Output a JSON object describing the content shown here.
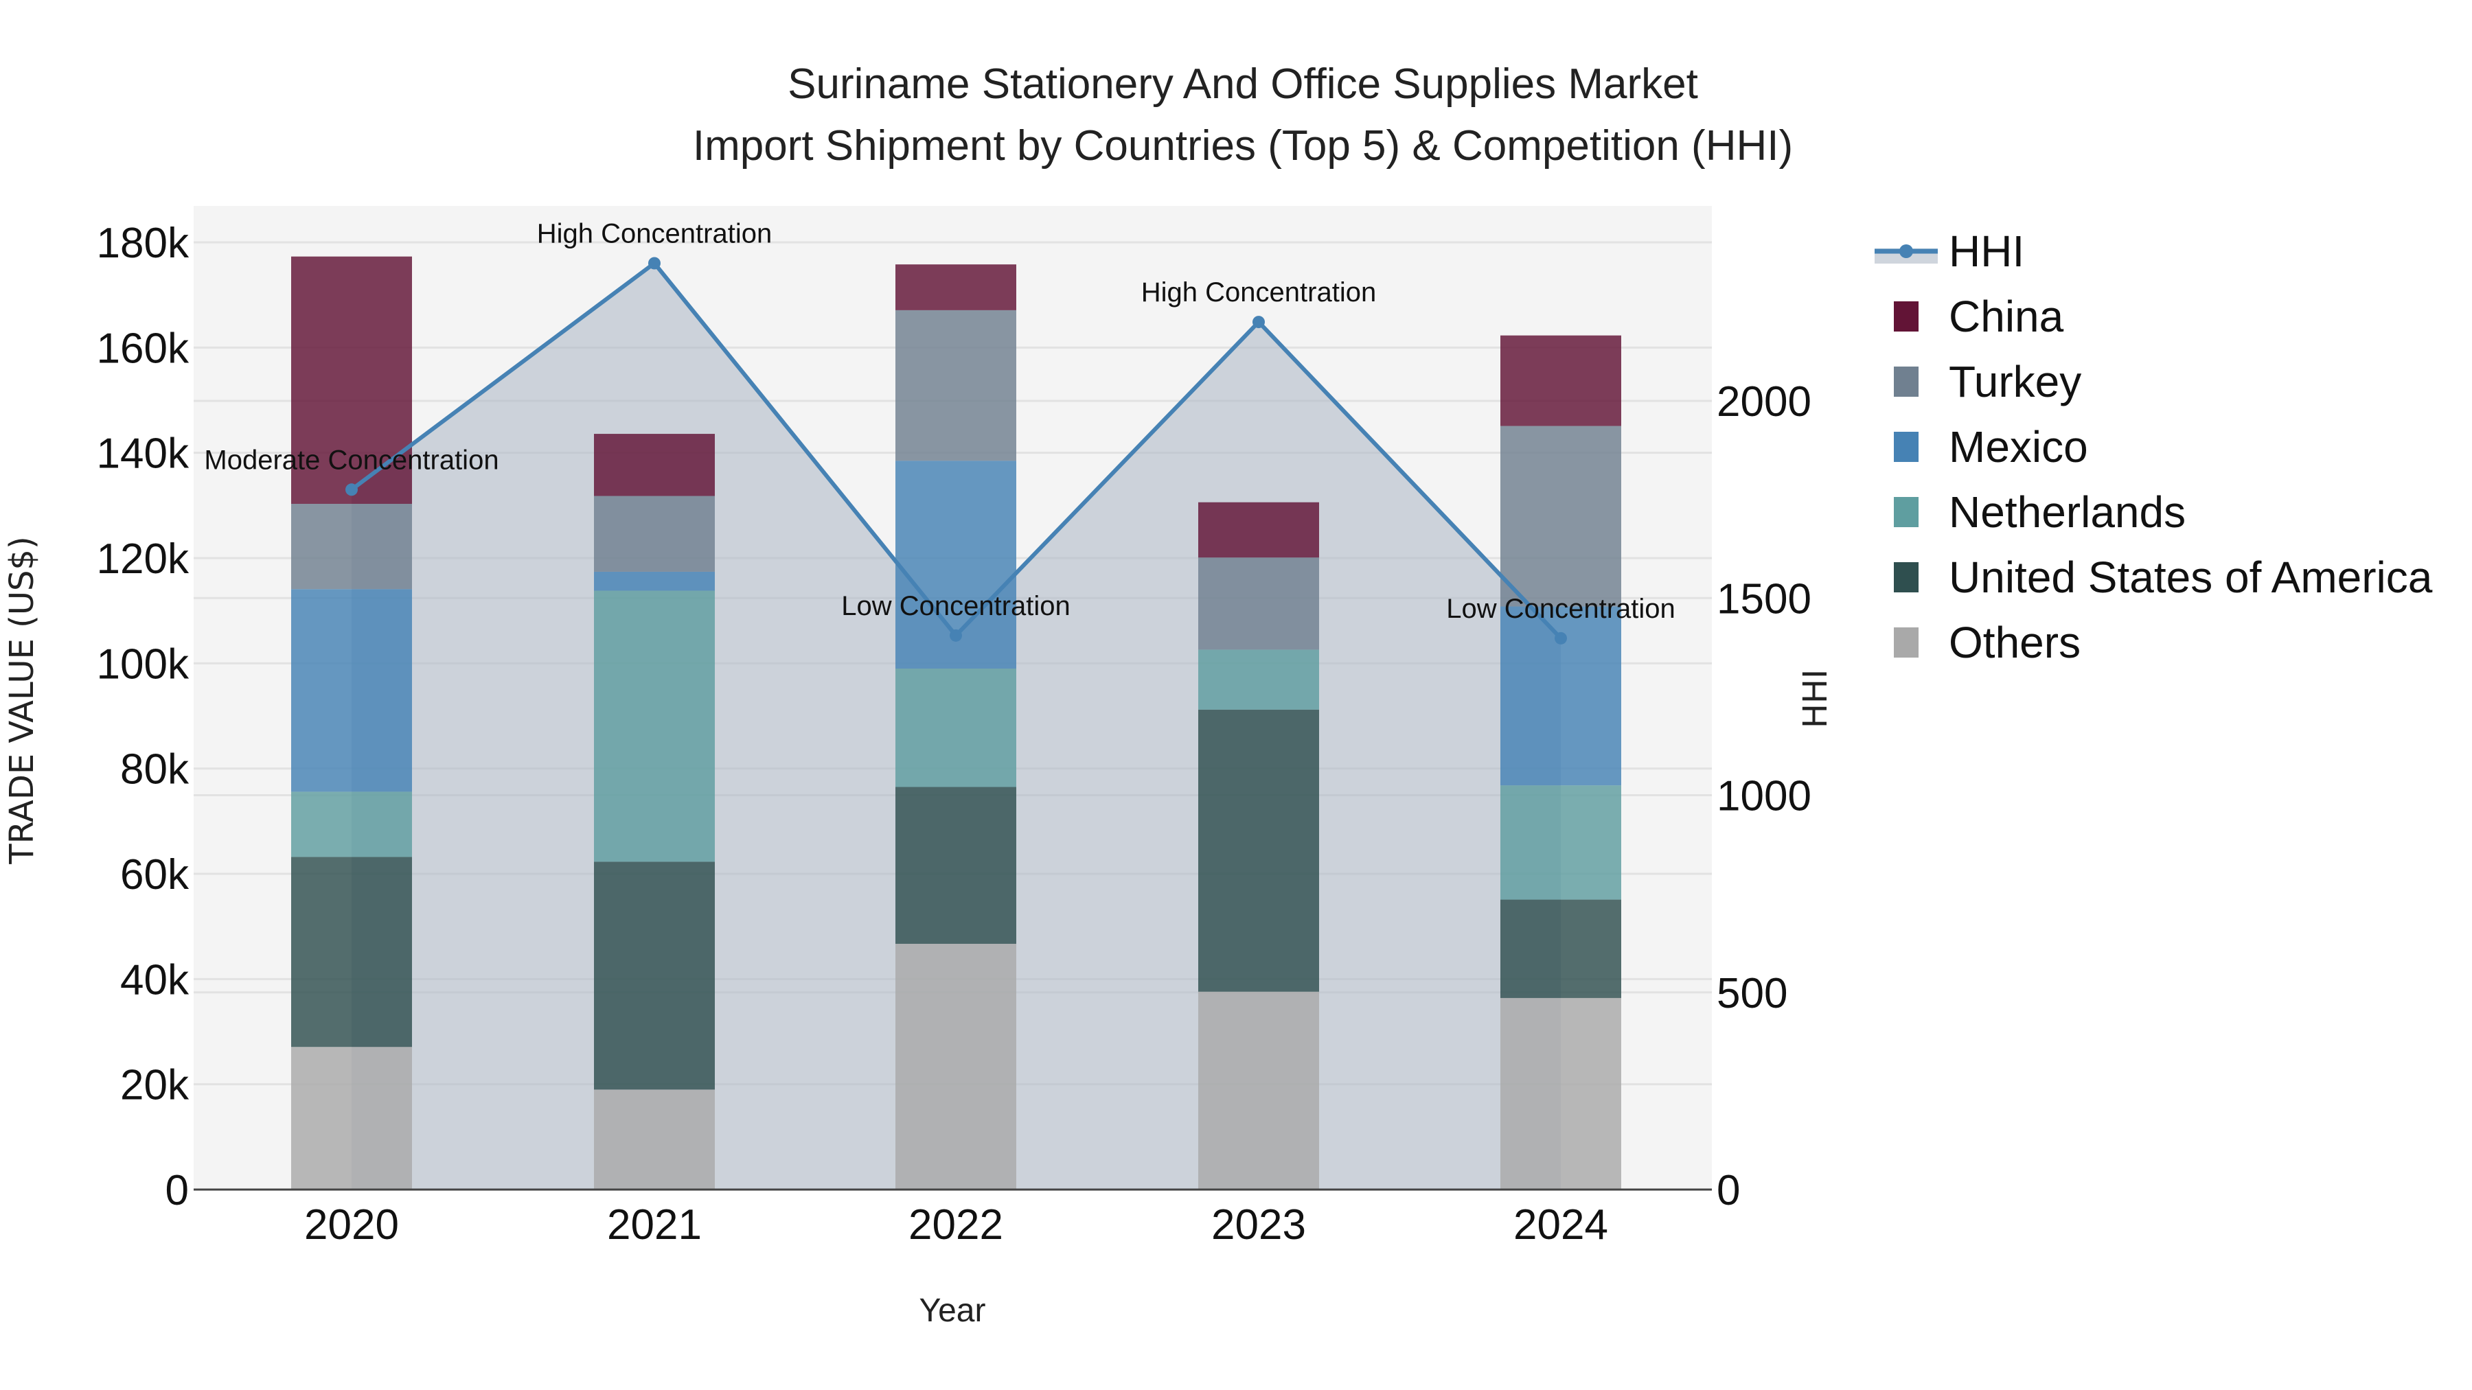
{
  "title": {
    "line1": "Suriname Stationery And Office Supplies Market",
    "line2": "Import Shipment by Countries (Top 5) & Competition (HHI)"
  },
  "axes": {
    "x_label": "Year",
    "y_label": "TRADE VALUE (US$)",
    "y2_label": "HHI",
    "y_ticks": [
      "0",
      "20k",
      "40k",
      "60k",
      "80k",
      "100k",
      "120k",
      "140k",
      "160k",
      "180k"
    ],
    "y_tick_values": [
      0,
      20000,
      40000,
      60000,
      80000,
      100000,
      120000,
      140000,
      160000,
      180000
    ],
    "y2_ticks": [
      "0",
      "500",
      "1000",
      "1500",
      "2000"
    ],
    "y2_tick_values": [
      0,
      500,
      1000,
      1500,
      2000
    ]
  },
  "legend": [
    {
      "name": "HHI",
      "color": "#4682b4",
      "type": "line"
    },
    {
      "name": "China",
      "color": "#621436",
      "type": "box"
    },
    {
      "name": "Turkey",
      "color": "#708090",
      "type": "box"
    },
    {
      "name": "Mexico",
      "color": "#4682b4",
      "type": "box"
    },
    {
      "name": "Netherlands",
      "color": "#5f9ea0",
      "type": "box"
    },
    {
      "name": "United States of America",
      "color": "#2f4f4f",
      "type": "box"
    },
    {
      "name": "Others",
      "color": "#a9a9a9",
      "type": "box"
    }
  ],
  "chart_data": {
    "type": "bar",
    "stacked": true,
    "title": "Suriname Stationery And Office Supplies Market Import Shipment by Countries (Top 5) & Competition (HHI)",
    "xlabel": "Year",
    "ylabel": "TRADE VALUE (US$)",
    "y2label": "HHI",
    "ylim": [
      0,
      186000
    ],
    "y2lim": [
      0,
      2490
    ],
    "grid": true,
    "legend_position": "right",
    "categories": [
      "2020",
      "2021",
      "2022",
      "2023",
      "2024"
    ],
    "series": [
      {
        "name": "Others",
        "color": "#a9a9a9",
        "values": [
          27100,
          19000,
          46700,
          37600,
          36400
        ]
      },
      {
        "name": "United States of America",
        "color": "#2f4f4f",
        "values": [
          36100,
          43300,
          29800,
          53600,
          18700
        ]
      },
      {
        "name": "Netherlands",
        "color": "#5f9ea0",
        "values": [
          12400,
          51500,
          22500,
          11400,
          21700
        ]
      },
      {
        "name": "Mexico",
        "color": "#4682b4",
        "values": [
          38500,
          3600,
          39500,
          0,
          34000
        ]
      },
      {
        "name": "Turkey",
        "color": "#708090",
        "values": [
          16200,
          14400,
          28600,
          17500,
          34300
        ]
      },
      {
        "name": "China",
        "color": "#621436",
        "values": [
          47000,
          11800,
          8700,
          10500,
          17200
        ]
      }
    ],
    "line_series": {
      "name": "HHI",
      "axis": "y2",
      "color": "#4682b4",
      "fill": "tozeroy",
      "values": [
        1775,
        2349,
        1405,
        2200,
        1398
      ]
    },
    "annotations": [
      {
        "x": "2020",
        "text": "Moderate Concentration"
      },
      {
        "x": "2021",
        "text": "High Concentration"
      },
      {
        "x": "2022",
        "text": "Low Concentration"
      },
      {
        "x": "2023",
        "text": "High Concentration"
      },
      {
        "x": "2024",
        "text": "Low Concentration"
      }
    ]
  }
}
